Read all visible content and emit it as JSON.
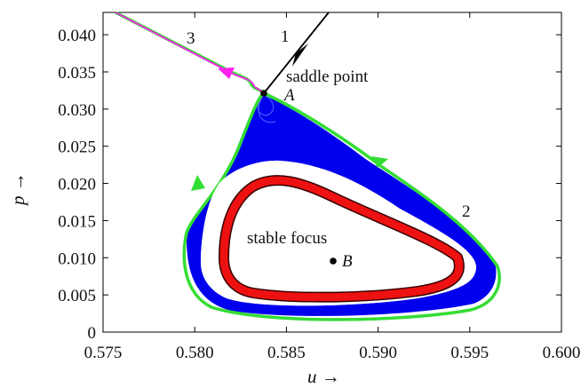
{
  "chart_data": {
    "type": "line",
    "title": "",
    "xlabel": "u →",
    "ylabel": "p →",
    "xlim": [
      0.575,
      0.6
    ],
    "ylim": [
      0,
      0.043
    ],
    "xticks": [
      "0.575",
      "0.580",
      "0.585",
      "0.590",
      "0.595",
      "0.600"
    ],
    "yticks": [
      "0",
      "0.005",
      "0.010",
      "0.015",
      "0.020",
      "0.025",
      "0.030",
      "0.035",
      "0.040"
    ],
    "grid": false,
    "series": [
      {
        "color": "#000000",
        "x": [
          0.5895,
          0.5842
        ],
        "y": [
          0.0452,
          0.0322
        ]
      },
      {
        "color": "#ff22ee",
        "x": [
          0.584,
          0.5834,
          0.5833,
          0.5828,
          0.58,
          0.576
        ],
        "y": [
          0.0322,
          0.0325,
          0.0332,
          0.0336,
          0.0358,
          0.0432
        ]
      },
      {
        "color": "#22ee22",
        "x": [
          0.5842,
          0.584,
          0.5836,
          0.583,
          0.582,
          0.5812,
          0.5806,
          0.58,
          0.5799,
          0.5802,
          0.5812,
          0.583,
          0.586,
          0.59,
          0.5935,
          0.5958,
          0.5966,
          0.596,
          0.594,
          0.591,
          0.5875,
          0.5855,
          0.5842
        ],
        "y": [
          0.0322,
          0.031,
          0.029,
          0.0262,
          0.0222,
          0.0188,
          0.015,
          0.0112,
          0.008,
          0.0055,
          0.004,
          0.003,
          0.003,
          0.0034,
          0.0045,
          0.006,
          0.008,
          0.0105,
          0.015,
          0.0212,
          0.0268,
          0.0305,
          0.0322
        ]
      },
      {
        "color": "#0000ee",
        "x": [
          0.5842,
          0.5836,
          0.5822,
          0.581,
          0.5806,
          0.581,
          0.583,
          0.587,
          0.5915,
          0.5948,
          0.5955,
          0.5944,
          0.5915,
          0.588,
          0.586,
          0.5846
        ],
        "y": [
          0.031,
          0.028,
          0.0215,
          0.0145,
          0.009,
          0.0058,
          0.0042,
          0.0038,
          0.0043,
          0.0058,
          0.008,
          0.0122,
          0.018,
          0.0238,
          0.0275,
          0.03
        ]
      },
      {
        "color": "#ff0000",
        "x": [
          0.583,
          0.5822,
          0.5822,
          0.583,
          0.585,
          0.588,
          0.591,
          0.5935,
          0.5948,
          0.5945,
          0.5925,
          0.59,
          0.5875,
          0.5855,
          0.584,
          0.583
        ],
        "y": [
          0.0192,
          0.016,
          0.012,
          0.009,
          0.0072,
          0.0062,
          0.006,
          0.0064,
          0.0078,
          0.01,
          0.0135,
          0.017,
          0.0195,
          0.0208,
          0.0205,
          0.0192
        ]
      }
    ],
    "points": [
      {
        "label": "A",
        "x": 0.5842,
        "y": 0.0322
      },
      {
        "label": "B",
        "x": 0.588,
        "y": 0.0097
      }
    ],
    "annotations": [
      "saddle point",
      "stable focus",
      "1",
      "2",
      "3"
    ]
  }
}
